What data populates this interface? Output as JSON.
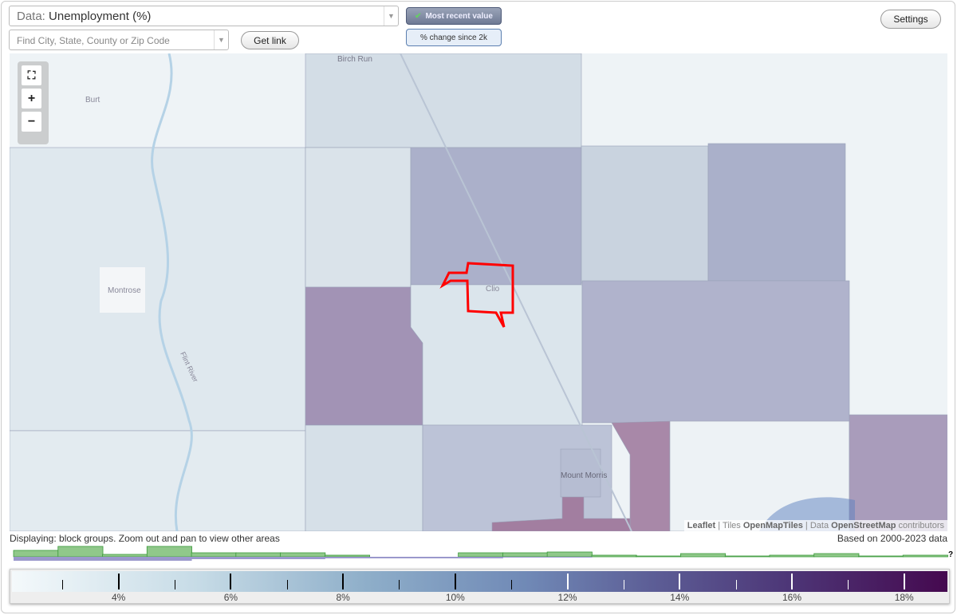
{
  "controls": {
    "data_prefix": "Data:",
    "data_value": "Unemployment (%)",
    "search_placeholder": "Find City, State, County or Zip Code",
    "get_link": "Get link",
    "most_recent": "Most recent value",
    "pct_change": "% change since 2k",
    "settings": "Settings"
  },
  "map": {
    "labels": {
      "birch_run": "Birch Run",
      "burt": "Burt",
      "montrose": "Montrose",
      "clio": "Clio",
      "mount_morris": "Mount Morris",
      "flint_river": "Flint River"
    },
    "zoom_controls": {
      "fullscreen": "fullscreen-icon",
      "zoom_in": "+",
      "zoom_out": "−"
    },
    "attribution": {
      "leaflet": "Leaflet",
      "tiles_prefix": "Tiles",
      "tiles": "OpenMapTiles",
      "data_prefix": "Data",
      "data": "OpenStreetMap",
      "suffix": "contributors"
    },
    "highlight_color": "#ff0000"
  },
  "status": {
    "displaying": "Displaying: block groups. Zoom out and pan to view other areas",
    "based_on": "Based on 2000-2023 data",
    "unknown_marker": "?"
  },
  "chart_data": {
    "type": "bar",
    "title": "",
    "range": [
      2.1,
      18.8
    ],
    "histogram_bins": 21,
    "series": [
      {
        "color": "#90c88a",
        "values": [
          8,
          13,
          3,
          13,
          5,
          5,
          5,
          2,
          0,
          0,
          5,
          5,
          6,
          2,
          1,
          4,
          1,
          2,
          4,
          1,
          2
        ]
      },
      {
        "color": "#9a98cc",
        "values": [
          12,
          8,
          7,
          5,
          3,
          3,
          3,
          2,
          2,
          2,
          2,
          1,
          1,
          0,
          0,
          0,
          0,
          0,
          0,
          0,
          0
        ]
      }
    ],
    "scale": {
      "major_ticks": [
        4,
        6,
        8,
        10,
        12,
        14,
        16,
        18
      ],
      "minor_ticks": [
        3,
        5,
        7,
        9,
        11,
        13,
        15,
        17
      ],
      "tick_labels": [
        "4%",
        "6%",
        "8%",
        "10%",
        "12%",
        "14%",
        "16%",
        "18%"
      ],
      "colors": [
        "#f4f9fb",
        "#8eaec9",
        "#5d5f97",
        "#45094f"
      ]
    }
  }
}
